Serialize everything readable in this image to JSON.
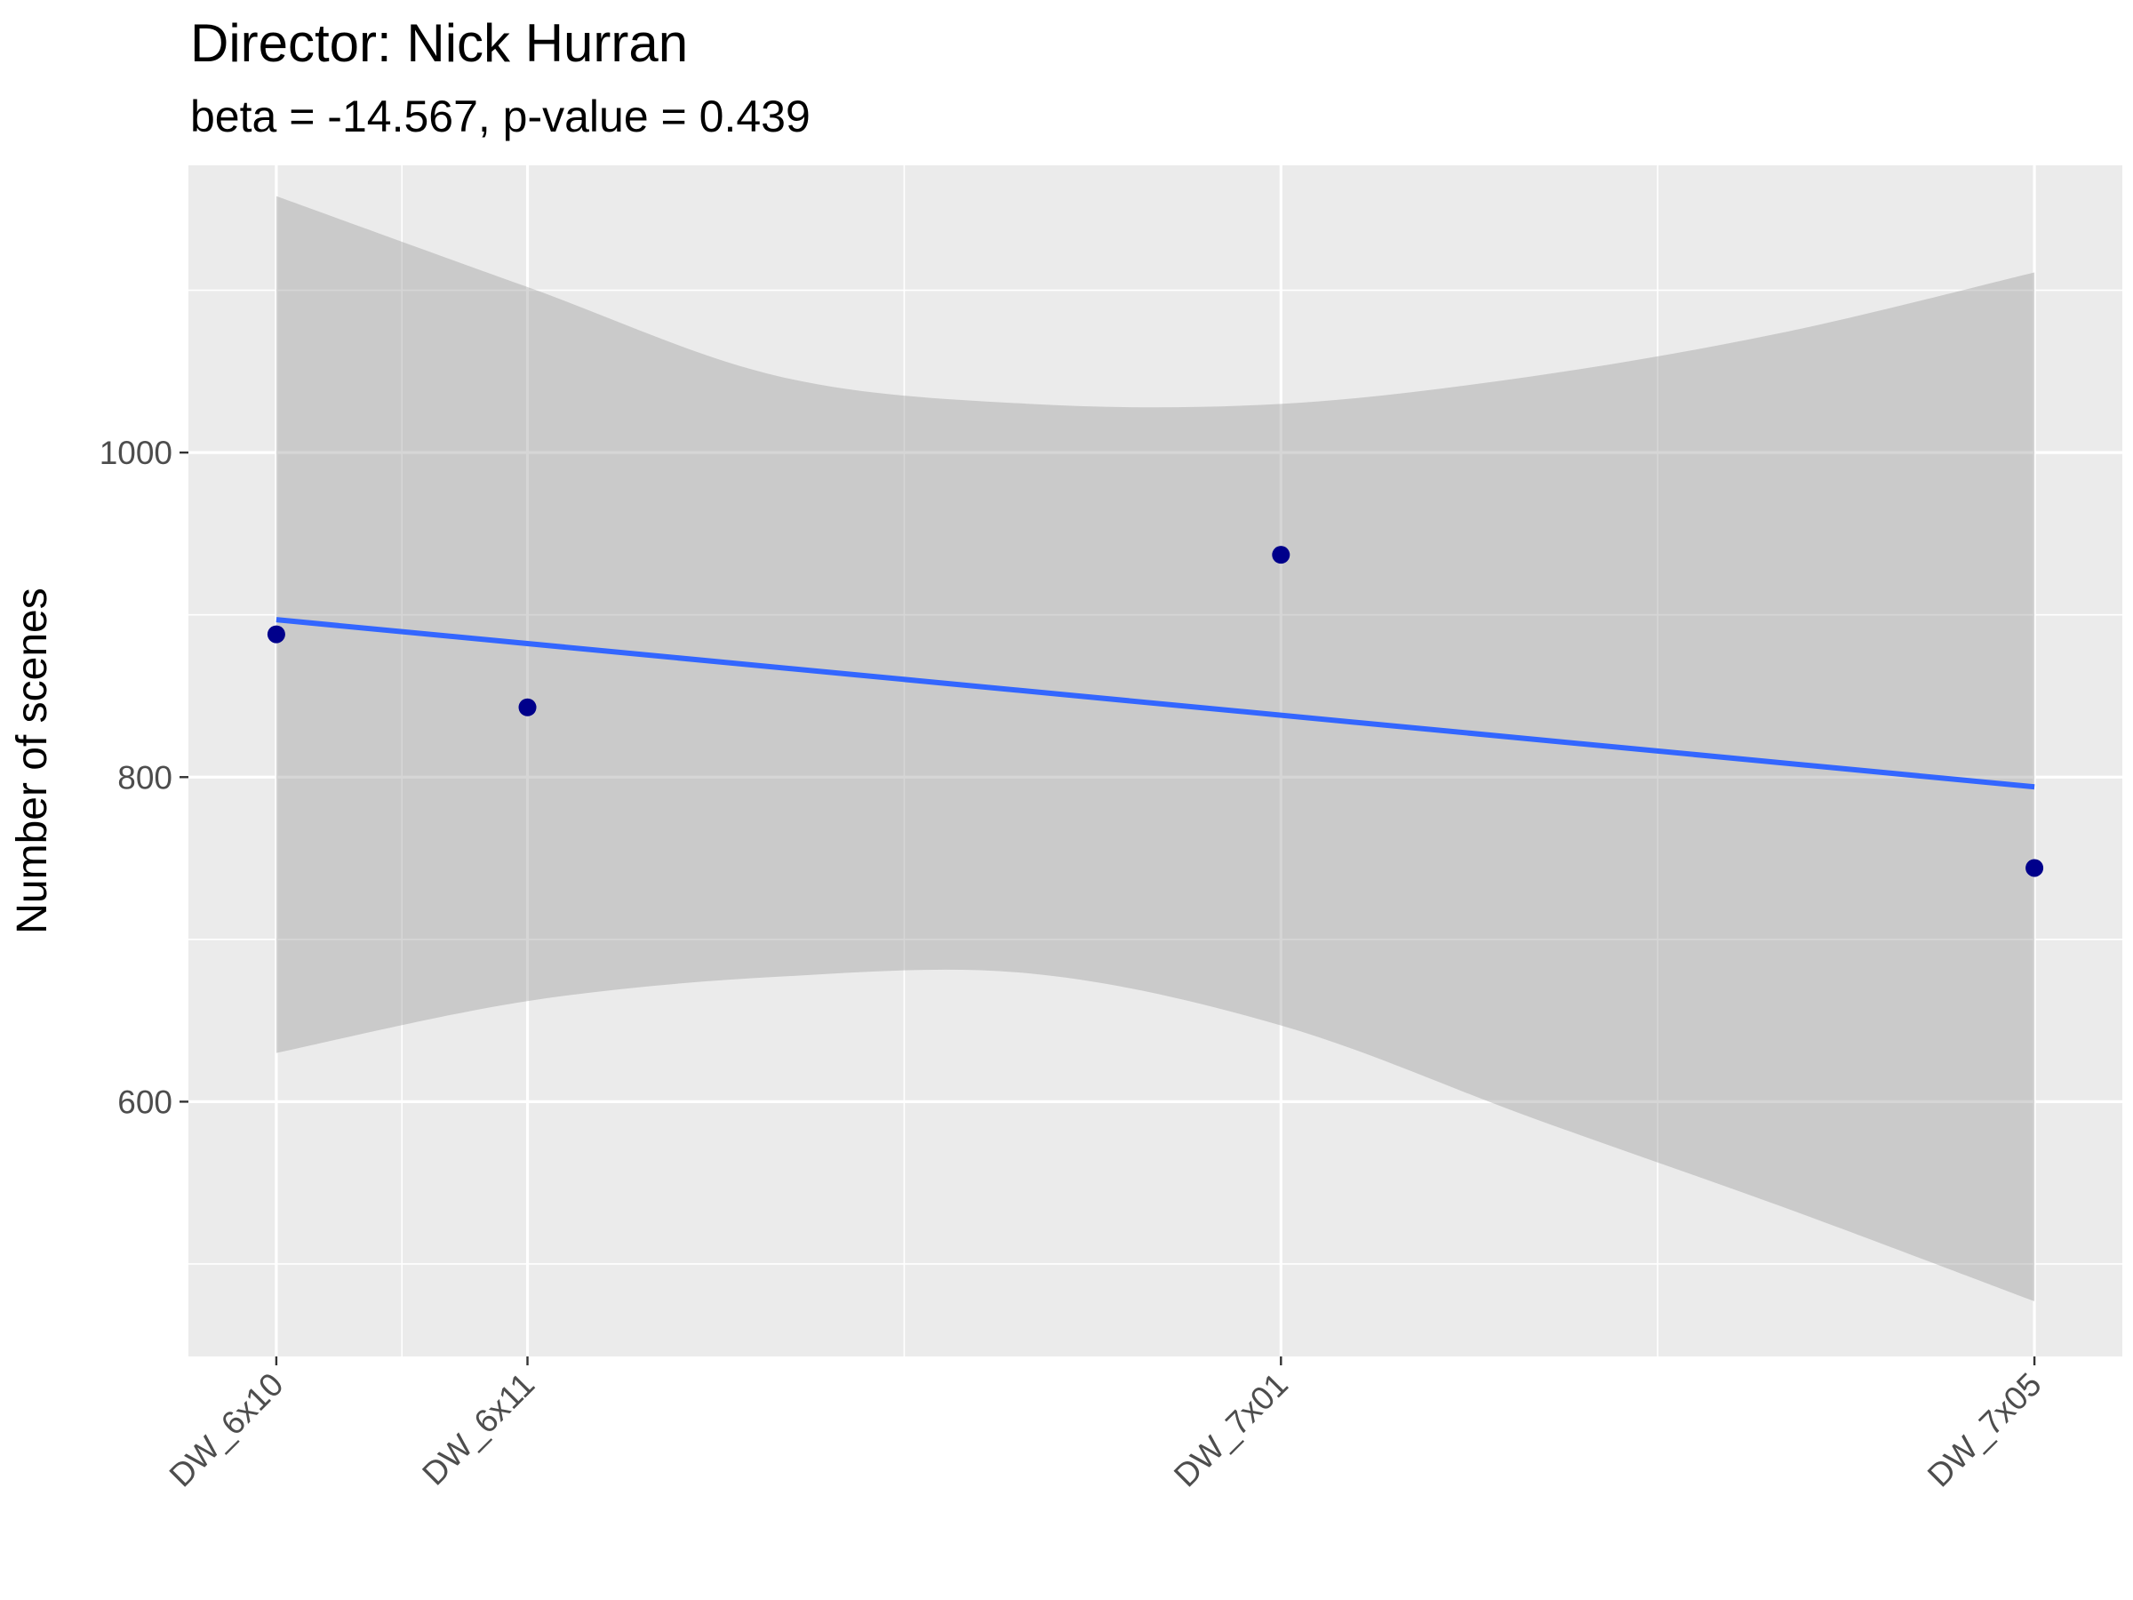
{
  "title": "Director: Nick Hurran",
  "subtitle": "beta = -14.567, p-value = 0.439",
  "chart_data": {
    "type": "scatter",
    "title": "Director: Nick Hurran",
    "subtitle": "beta = -14.567, p-value = 0.439",
    "xlabel": "",
    "ylabel": "Number of scenes",
    "categories": [
      "DW_6x10",
      "DW_6x11",
      "DW_7x01",
      "DW_7x05"
    ],
    "x": [
      0,
      4,
      16,
      28
    ],
    "xlim": [
      -1.4,
      29.4
    ],
    "values": [
      888,
      843,
      937,
      744
    ],
    "ylim": [
      443,
      1177
    ],
    "yticks": [
      600,
      800,
      1000
    ],
    "grid": true,
    "point_color": "#00008B",
    "trend": {
      "color": "#3366FF",
      "x": [
        0,
        28
      ],
      "values": [
        897,
        794
      ],
      "ci_x": [
        0,
        4,
        8,
        12,
        16,
        20,
        24,
        28
      ],
      "ci_upper": [
        1158,
        1102,
        1047,
        1030,
        1030,
        1047,
        1074,
        1111
      ],
      "ci_lower": [
        630,
        662,
        677,
        679,
        647,
        590,
        535,
        477
      ],
      "ci_color": "#999999"
    }
  }
}
